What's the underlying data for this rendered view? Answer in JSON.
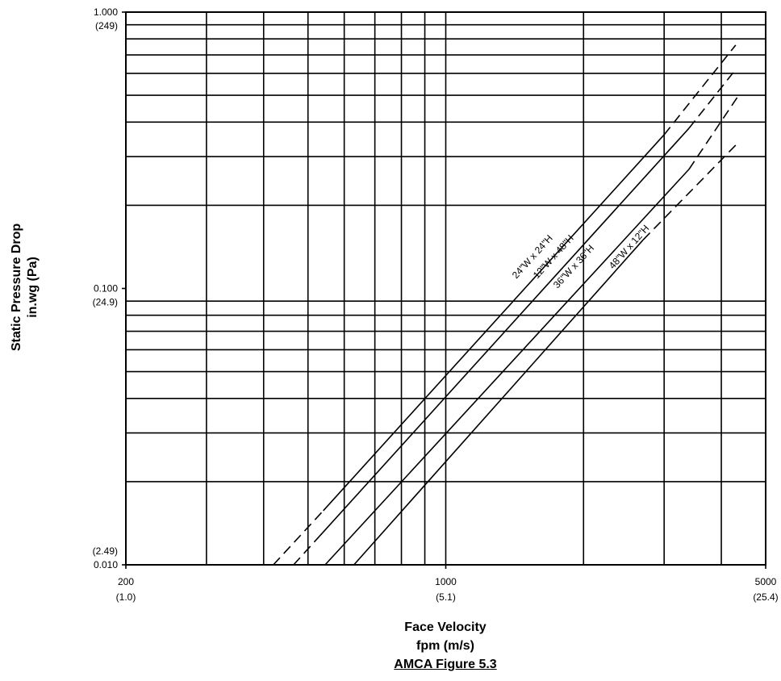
{
  "chart_data": {
    "type": "line",
    "x_scale": "log",
    "y_scale": "log",
    "xlim": [
      200,
      5000
    ],
    "ylim": [
      0.01,
      1.0
    ],
    "grid": true,
    "xlabel_lines": [
      "Face Velocity",
      "fpm (m/s)"
    ],
    "ylabel_lines": [
      "Static Pressure Drop",
      "in.wg (Pa)"
    ],
    "caption": "AMCA Figure 5.3",
    "x_ticks": [
      {
        "value": 200,
        "label": "200",
        "sub": "(1.0)"
      },
      {
        "value": 1000,
        "label": "1000",
        "sub": "(5.1)"
      },
      {
        "value": 5000,
        "label": "5000",
        "sub": "(25.4)"
      }
    ],
    "y_ticks": [
      {
        "value": 1.0,
        "label": "1.000",
        "sub": "(249)"
      },
      {
        "value": 0.1,
        "label": "0.100",
        "sub": "(24.9)"
      },
      {
        "value": 0.01,
        "label": "0.010",
        "sub": "(2.49)"
      }
    ],
    "x_gridlines": [
      300,
      400,
      500,
      600,
      700,
      800,
      900,
      1000,
      2000,
      3000,
      4000
    ],
    "y_gridlines": [
      0.02,
      0.03,
      0.04,
      0.05,
      0.06,
      0.07,
      0.08,
      0.09,
      0.2,
      0.3,
      0.4,
      0.5,
      0.6,
      0.7,
      0.8,
      0.9
    ],
    "series": [
      {
        "name": "24\"W x 24\"H",
        "dashed_low": [
          [
            420,
            0.01
          ],
          [
            540,
            0.0157
          ]
        ],
        "solid": [
          [
            540,
            0.0157
          ],
          [
            3000,
            0.36
          ]
        ],
        "dashed_high": [
          [
            3000,
            0.36
          ],
          [
            4300,
            0.76
          ]
        ]
      },
      {
        "name": "12\"W x 48\"H",
        "dashed_low": [
          [
            465,
            0.01
          ],
          [
            530,
            0.0127
          ]
        ],
        "solid": [
          [
            530,
            0.0127
          ],
          [
            3400,
            0.38
          ]
        ],
        "dashed_high": [
          [
            3400,
            0.38
          ],
          [
            4300,
            0.62
          ]
        ]
      },
      {
        "name": "36\"W x 36\"H",
        "dashed_low": [],
        "solid": [
          [
            545,
            0.01
          ],
          [
            3400,
            0.27
          ]
        ],
        "dashed_high": [
          [
            3400,
            0.27
          ],
          [
            4400,
            0.51
          ]
        ]
      },
      {
        "name": "48\"W x 12\"H",
        "dashed_low": [],
        "solid": [
          [
            630,
            0.01
          ],
          [
            2700,
            0.15
          ]
        ],
        "dashed_high": [
          [
            2700,
            0.15
          ],
          [
            4300,
            0.33
          ]
        ]
      }
    ]
  }
}
